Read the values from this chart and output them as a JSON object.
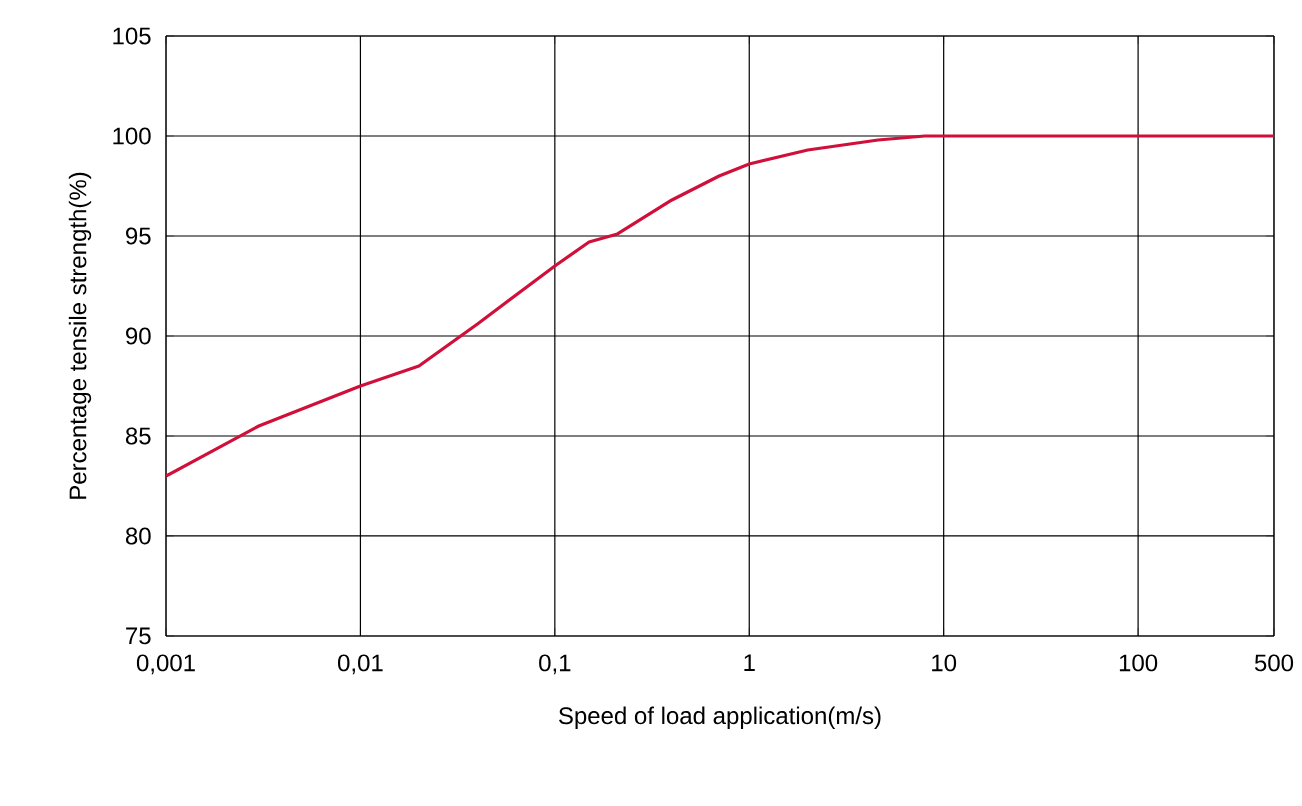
{
  "chart_data": {
    "type": "line",
    "xlabel": "Speed of load application(m/s)",
    "ylabel": "Percentage tensile strength(%)",
    "log": "x",
    "x": [
      0.001,
      0.003,
      0.01,
      0.02,
      0.04,
      0.1,
      0.15,
      0.21,
      0.4,
      0.7,
      1,
      2,
      4.6,
      8,
      10,
      100,
      500
    ],
    "series": [
      {
        "color": "#d0103a",
        "values": [
          83.0,
          85.5,
          87.5,
          88.5,
          90.6,
          93.5,
          94.7,
          95.1,
          96.8,
          98.0,
          98.6,
          99.3,
          99.8,
          100,
          100,
          100,
          100
        ]
      }
    ],
    "xlim": [
      0.001,
      500
    ],
    "ylim": [
      75,
      105
    ],
    "xticks": [
      {
        "value": 0.001,
        "label": "0,001"
      },
      {
        "value": 0.01,
        "label": "0,01"
      },
      {
        "value": 0.1,
        "label": "0,1"
      },
      1,
      10,
      100,
      500
    ],
    "yticks": [
      75,
      80,
      85,
      90,
      95,
      100,
      105
    ],
    "grid": true,
    "marker": "none",
    "line_style": "solid"
  }
}
